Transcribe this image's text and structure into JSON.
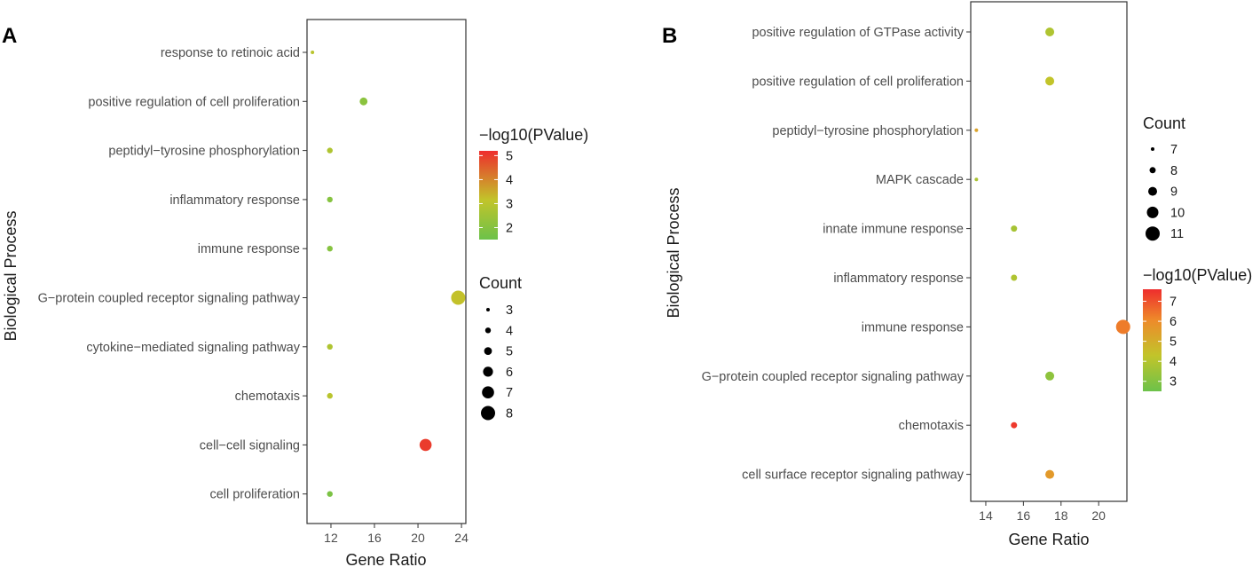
{
  "chart_data": [
    {
      "panel": "A",
      "type": "scatter",
      "xlabel": "Gene Ratio",
      "ylabel": "Biological Process",
      "xlim": [
        9.8,
        24.4
      ],
      "x_ticks": [
        12,
        16,
        20,
        24
      ],
      "categories": [
        "response to retinoic acid",
        "positive regulation of cell proliferation",
        "peptidyl−tyrosine phosphorylation",
        "inflammatory response",
        "immune response",
        "G−protein coupled receptor signaling pathway",
        "cytokine−mediated signaling pathway",
        "chemotaxis",
        "cell−cell signaling",
        "cell proliferation"
      ],
      "points": [
        {
          "x": 10.3,
          "count": 3,
          "pvalue": 3.0
        },
        {
          "x": 15.0,
          "count": 5,
          "pvalue": 2.1
        },
        {
          "x": 11.9,
          "count": 4,
          "pvalue": 2.8
        },
        {
          "x": 11.9,
          "count": 4,
          "pvalue": 2.0
        },
        {
          "x": 11.9,
          "count": 4,
          "pvalue": 2.0
        },
        {
          "x": 23.7,
          "count": 8,
          "pvalue": 3.2
        },
        {
          "x": 11.9,
          "count": 4,
          "pvalue": 2.8
        },
        {
          "x": 11.9,
          "count": 4,
          "pvalue": 3.0
        },
        {
          "x": 20.7,
          "count": 7,
          "pvalue": 5.0
        },
        {
          "x": 11.9,
          "count": 4,
          "pvalue": 1.8
        }
      ],
      "color_legend": {
        "title": "−log10(PValue)",
        "ticks": [
          2,
          3,
          4,
          5
        ],
        "range": [
          1.5,
          5.2
        ]
      },
      "size_legend": {
        "title": "Count",
        "values": [
          3,
          4,
          5,
          6,
          7,
          8
        ]
      }
    },
    {
      "panel": "B",
      "type": "scatter",
      "xlabel": "Gene Ratio",
      "ylabel": "Biological Process",
      "xlim": [
        13.2,
        21.5
      ],
      "x_ticks": [
        14,
        16,
        18,
        20
      ],
      "categories": [
        "positive regulation of GTPase activity",
        "positive regulation of cell proliferation",
        "peptidyl−tyrosine phosphorylation",
        "MAPK cascade",
        "innate immune response",
        "inflammatory response",
        "immune response",
        "G−protein coupled receptor signaling pathway",
        "chemotaxis",
        "cell surface receptor signaling pathway"
      ],
      "points": [
        {
          "x": 17.4,
          "count": 9,
          "pvalue": 3.9
        },
        {
          "x": 17.4,
          "count": 9,
          "pvalue": 4.3
        },
        {
          "x": 13.5,
          "count": 7,
          "pvalue": 5.3
        },
        {
          "x": 13.5,
          "count": 7,
          "pvalue": 3.8
        },
        {
          "x": 15.5,
          "count": 8,
          "pvalue": 3.7
        },
        {
          "x": 15.5,
          "count": 8,
          "pvalue": 3.9
        },
        {
          "x": 21.3,
          "count": 11,
          "pvalue": 6.3
        },
        {
          "x": 17.4,
          "count": 9,
          "pvalue": 3.2
        },
        {
          "x": 15.5,
          "count": 8,
          "pvalue": 7.4
        },
        {
          "x": 17.4,
          "count": 9,
          "pvalue": 5.6
        }
      ],
      "size_legend": {
        "title": "Count",
        "values": [
          7,
          8,
          9,
          10,
          11
        ]
      },
      "color_legend": {
        "title": "−log10(PValue)",
        "ticks": [
          3,
          4,
          5,
          6,
          7
        ],
        "range": [
          2.5,
          7.6
        ]
      }
    }
  ],
  "colors": {
    "low": "#6cc24a",
    "mid": "#c2c42a",
    "high": "#ee2d2d"
  }
}
